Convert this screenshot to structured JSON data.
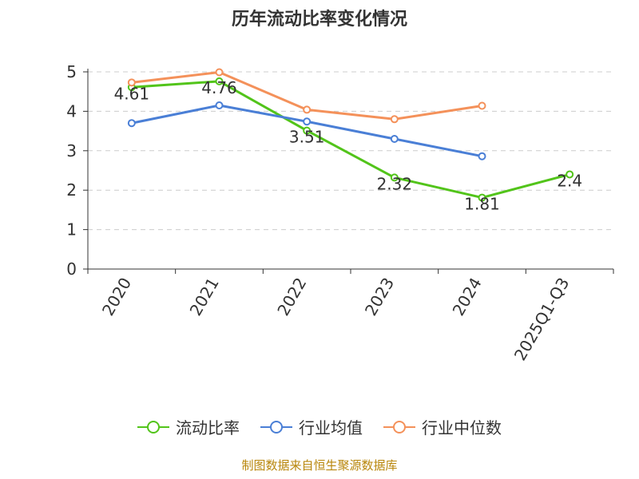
{
  "chart_data": {
    "type": "line",
    "title": "历年流动比率变化情况",
    "categories": [
      "2020",
      "2021",
      "2022",
      "2023",
      "2024",
      "2025Q1-Q3"
    ],
    "ylim": [
      0,
      5
    ],
    "yticks": [
      0,
      1,
      2,
      3,
      4,
      5
    ],
    "grid": true,
    "legend_position": "bottom",
    "series": [
      {
        "name": "流动比率",
        "color": "#52c41a",
        "values": [
          4.61,
          4.76,
          3.51,
          2.32,
          1.81,
          2.4
        ],
        "labels": [
          "4.61",
          "4.76",
          "3.51",
          "2.32",
          "1.81",
          "2.4"
        ]
      },
      {
        "name": "行业均值",
        "color": "#4a7fd6",
        "values": [
          3.7,
          4.15,
          3.74,
          3.3,
          2.86,
          null
        ]
      },
      {
        "name": "行业中位数",
        "color": "#f4915a",
        "values": [
          4.73,
          4.99,
          4.04,
          3.8,
          4.14,
          null
        ]
      }
    ]
  },
  "source": "制图数据来自恒生聚源数据库"
}
